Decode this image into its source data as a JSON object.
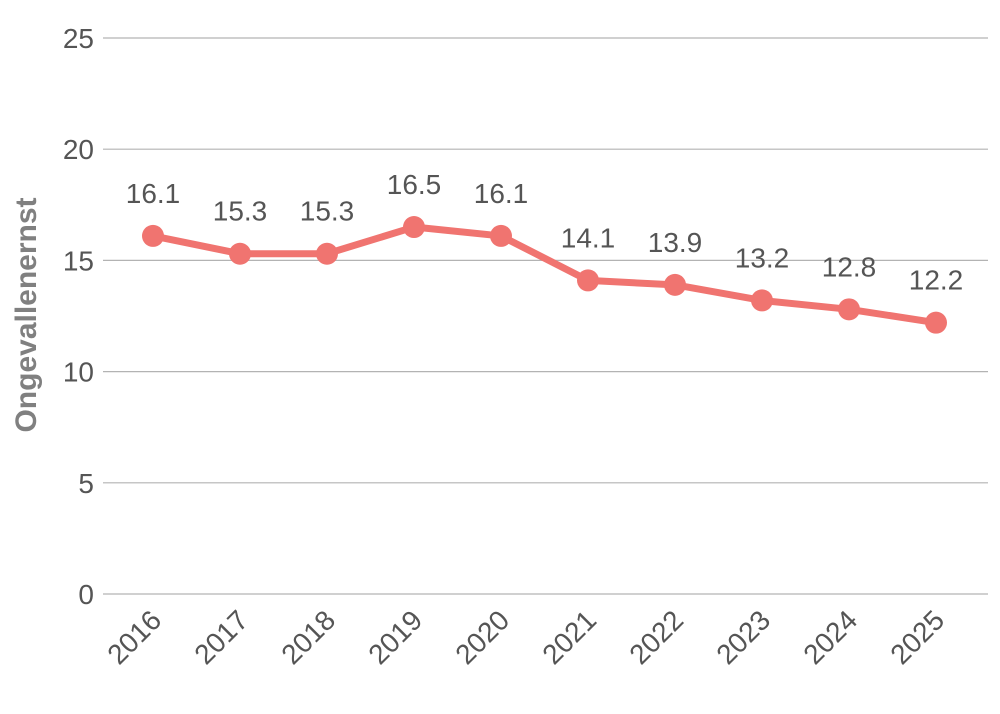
{
  "chart_data": {
    "type": "line",
    "title": "",
    "xlabel": "",
    "ylabel": "Ongevallenernst",
    "categories": [
      "2016",
      "2017",
      "2018",
      "2019",
      "2020",
      "2021",
      "2022",
      "2023",
      "2024",
      "2025"
    ],
    "series": [
      {
        "name": "Ongevallenernst",
        "values": [
          16.1,
          15.3,
          15.3,
          16.5,
          16.1,
          14.1,
          13.9,
          13.2,
          12.8,
          12.2
        ],
        "labels": [
          "16.1",
          "15.3",
          "15.3",
          "16.5",
          "16.1",
          "14.1",
          "13.9",
          "13.2",
          "12.8",
          "12.2"
        ],
        "color": "#f07470"
      }
    ],
    "ylim": [
      0,
      25
    ],
    "yticks": [
      0,
      5,
      10,
      15,
      20,
      25
    ],
    "ytick_labels": [
      "0",
      "5",
      "10",
      "15",
      "20",
      "25"
    ],
    "grid": true,
    "legend": "none"
  }
}
